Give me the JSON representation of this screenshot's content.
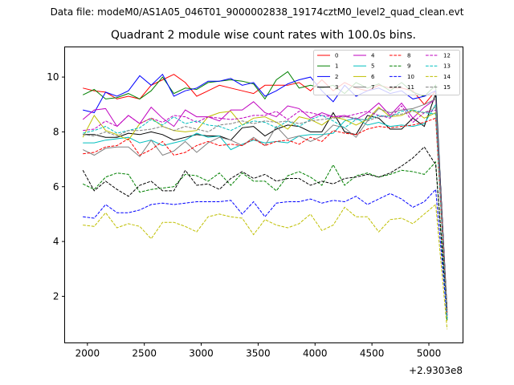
{
  "figure": {
    "suptitle": "Data file: modeM0/AS1A05_046T01_9000002838_19174cztM0_level2_quad_clean.evt"
  },
  "chart_data": {
    "type": "line",
    "title": "Quadrant 2 module wise count rates with 100.0s bins.",
    "xlabel": "",
    "ylabel": "",
    "x_offset_label": "+2.9303e8",
    "xlim": [
      1800,
      5300
    ],
    "ylim": [
      0.3,
      11.1
    ],
    "xticks": [
      2000,
      2500,
      3000,
      3500,
      4000,
      4500,
      5000
    ],
    "yticks": [
      2,
      4,
      6,
      8,
      10
    ],
    "grid": false,
    "legend": {
      "placement": "top-right",
      "columns": 4
    },
    "x": [
      1960,
      2060,
      2160,
      2260,
      2360,
      2460,
      2560,
      2660,
      2760,
      2860,
      2960,
      3060,
      3160,
      3260,
      3360,
      3460,
      3560,
      3660,
      3760,
      3860,
      3960,
      4060,
      4160,
      4260,
      4360,
      4460,
      4560,
      4660,
      4760,
      4860,
      4960,
      5060,
      5160
    ],
    "series": [
      {
        "name": "0",
        "color": "#ff0000",
        "dash": "solid",
        "values": [
          9.6,
          9.5,
          9.45,
          9.2,
          9.3,
          9.2,
          9.7,
          9.9,
          10.1,
          9.8,
          9.3,
          9.5,
          9.7,
          9.6,
          9.5,
          9.4,
          9.7,
          9.7,
          9.7,
          9.8,
          9.5,
          9.9,
          9.5,
          9.8,
          9.6,
          9.5,
          9.7,
          9.6,
          9.6,
          9.5,
          9.0,
          9.5,
          1.3
        ]
      },
      {
        "name": "1",
        "color": "#008000",
        "dash": "solid",
        "values": [
          9.35,
          9.55,
          9.2,
          9.25,
          9.4,
          9.2,
          9.5,
          10.0,
          9.4,
          9.6,
          9.55,
          9.8,
          9.85,
          9.9,
          9.85,
          9.75,
          9.2,
          9.9,
          10.2,
          9.6,
          9.7,
          9.6,
          9.7,
          9.4,
          9.8,
          9.6,
          9.75,
          9.5,
          9.8,
          9.45,
          9.3,
          9.7,
          1.2
        ]
      },
      {
        "name": "2",
        "color": "#0000ff",
        "dash": "solid",
        "values": [
          8.8,
          8.7,
          9.45,
          9.3,
          9.5,
          10.05,
          9.7,
          10.1,
          9.3,
          9.5,
          9.6,
          9.85,
          9.85,
          9.95,
          9.7,
          9.8,
          9.3,
          9.5,
          9.75,
          9.9,
          10.0,
          9.5,
          9.1,
          9.7,
          9.3,
          9.5,
          9.6,
          9.4,
          9.5,
          9.2,
          9.3,
          9.5,
          1.4
        ]
      },
      {
        "name": "3",
        "color": "#000000",
        "dash": "solid",
        "values": [
          7.9,
          7.9,
          7.8,
          7.8,
          7.95,
          7.9,
          8.0,
          7.9,
          7.7,
          7.8,
          7.9,
          7.85,
          7.85,
          7.7,
          8.15,
          8.2,
          7.85,
          8.1,
          8.25,
          8.2,
          8.0,
          8.0,
          8.7,
          8.0,
          7.9,
          8.6,
          8.5,
          8.1,
          8.1,
          8.5,
          8.2,
          9.4,
          1.5
        ]
      },
      {
        "name": "4",
        "color": "#bf00bf",
        "dash": "solid",
        "values": [
          8.45,
          8.8,
          8.85,
          8.2,
          8.6,
          8.3,
          8.9,
          8.5,
          8.2,
          8.8,
          8.55,
          8.55,
          8.4,
          8.8,
          8.8,
          9.1,
          8.7,
          8.55,
          8.95,
          8.85,
          8.5,
          8.7,
          8.55,
          8.6,
          8.45,
          8.7,
          9.05,
          8.6,
          9.05,
          8.5,
          8.9,
          9.2,
          1.3
        ]
      },
      {
        "name": "5",
        "color": "#00bfbf",
        "dash": "solid",
        "values": [
          7.6,
          7.6,
          7.7,
          7.75,
          7.8,
          7.6,
          7.7,
          7.5,
          7.6,
          7.7,
          7.95,
          7.8,
          7.85,
          7.35,
          7.55,
          7.7,
          7.6,
          7.65,
          7.6,
          7.85,
          7.9,
          7.9,
          7.95,
          8.4,
          8.5,
          8.25,
          8.35,
          8.2,
          8.25,
          8.2,
          8.3,
          9.0,
          1.2
        ]
      },
      {
        "name": "6",
        "color": "#bfbf00",
        "dash": "solid",
        "values": [
          7.8,
          8.6,
          8.05,
          7.9,
          7.7,
          8.3,
          8.5,
          8.2,
          8.05,
          8.0,
          8.05,
          8.55,
          8.7,
          8.75,
          8.25,
          8.5,
          8.55,
          8.35,
          8.1,
          8.55,
          8.45,
          8.25,
          8.55,
          8.45,
          8.25,
          8.45,
          8.9,
          8.55,
          8.6,
          8.8,
          8.5,
          8.7,
          1.1
        ]
      },
      {
        "name": "7",
        "color": "#808080",
        "dash": "solid",
        "values": [
          7.35,
          7.15,
          7.4,
          7.45,
          7.45,
          7.1,
          7.7,
          7.15,
          7.3,
          7.65,
          7.25,
          7.6,
          7.8,
          7.7,
          7.5,
          7.8,
          7.5,
          8.2,
          7.75,
          7.85,
          7.65,
          7.85,
          8.25,
          8.15,
          7.8,
          8.4,
          8.85,
          8.7,
          8.8,
          8.85,
          9.0,
          9.2,
          1.4
        ]
      },
      {
        "name": "8",
        "color": "#ff0000",
        "dash": "dashed",
        "values": [
          7.2,
          7.25,
          7.45,
          7.5,
          7.75,
          7.15,
          7.35,
          7.65,
          7.15,
          7.25,
          7.5,
          7.65,
          7.5,
          7.55,
          7.5,
          7.75,
          7.5,
          7.65,
          7.7,
          7.55,
          7.8,
          7.65,
          8.05,
          7.95,
          7.9,
          8.1,
          8.2,
          8.15,
          8.2,
          8.25,
          8.35,
          8.5,
          1.3
        ]
      },
      {
        "name": "9",
        "color": "#008000",
        "dash": "dashed",
        "values": [
          6.1,
          5.9,
          6.35,
          6.5,
          6.45,
          5.8,
          5.9,
          5.95,
          6.0,
          6.45,
          6.4,
          6.2,
          6.5,
          6.05,
          6.5,
          6.2,
          6.2,
          5.85,
          6.4,
          6.55,
          6.35,
          6.05,
          6.8,
          6.05,
          6.4,
          6.5,
          6.35,
          6.45,
          6.6,
          6.55,
          6.45,
          6.9,
          1.1
        ]
      },
      {
        "name": "10",
        "color": "#0000ff",
        "dash": "dashed",
        "values": [
          4.9,
          4.85,
          5.35,
          5.05,
          5.05,
          5.15,
          5.35,
          5.4,
          5.35,
          5.4,
          5.45,
          5.45,
          5.45,
          5.5,
          5.0,
          5.45,
          4.9,
          5.4,
          5.45,
          5.45,
          5.55,
          5.4,
          5.5,
          5.45,
          5.65,
          5.35,
          5.55,
          5.75,
          5.55,
          5.25,
          5.45,
          5.9,
          1.2
        ]
      },
      {
        "name": "11",
        "color": "#000000",
        "dash": "dashed",
        "values": [
          6.6,
          5.85,
          6.2,
          5.9,
          5.65,
          6.05,
          6.2,
          5.85,
          5.85,
          6.6,
          6.05,
          6.1,
          5.9,
          6.3,
          6.55,
          6.3,
          6.45,
          6.2,
          6.3,
          6.3,
          6.05,
          6.2,
          6.1,
          6.3,
          6.35,
          6.45,
          6.35,
          6.5,
          6.75,
          7.05,
          7.45,
          6.8,
          1.5
        ]
      },
      {
        "name": "12",
        "color": "#bf00bf",
        "dash": "dashed",
        "values": [
          8.05,
          8.1,
          8.4,
          8.2,
          8.6,
          8.3,
          8.5,
          8.35,
          8.6,
          8.55,
          8.35,
          8.55,
          8.5,
          8.45,
          8.5,
          8.6,
          8.6,
          8.75,
          8.45,
          8.75,
          8.7,
          8.6,
          8.55,
          8.55,
          8.65,
          8.75,
          8.6,
          8.5,
          8.95,
          8.35,
          8.7,
          8.8,
          1.3
        ]
      },
      {
        "name": "13",
        "color": "#00bfbf",
        "dash": "dashed",
        "values": [
          7.95,
          8.05,
          8.2,
          7.95,
          8.05,
          8.15,
          8.45,
          8.25,
          8.55,
          8.3,
          8.4,
          8.25,
          8.2,
          8.05,
          8.25,
          8.4,
          8.35,
          8.15,
          8.4,
          8.2,
          8.45,
          8.6,
          8.4,
          8.15,
          8.45,
          8.45,
          8.6,
          8.55,
          8.75,
          8.8,
          8.7,
          8.65,
          1.2
        ]
      },
      {
        "name": "14",
        "color": "#bfbf00",
        "dash": "dashed",
        "values": [
          4.6,
          4.55,
          5.05,
          4.5,
          4.65,
          4.55,
          4.1,
          4.7,
          4.7,
          4.55,
          4.35,
          4.9,
          5.0,
          4.9,
          4.85,
          4.25,
          4.8,
          4.6,
          4.5,
          4.65,
          5.0,
          4.4,
          4.6,
          5.25,
          4.9,
          4.9,
          4.35,
          4.8,
          4.85,
          4.65,
          5.0,
          5.35,
          0.8
        ]
      },
      {
        "name": "15",
        "color": "#808080",
        "dash": "dashed",
        "values": [
          7.9,
          7.85,
          8.0,
          7.85,
          8.05,
          8.05,
          8.1,
          8.2,
          8.05,
          8.2,
          8.1,
          8.0,
          8.25,
          8.3,
          8.4,
          8.3,
          8.4,
          8.35,
          8.4,
          8.3,
          8.4,
          8.45,
          8.5,
          8.55,
          8.5,
          8.4,
          8.55,
          8.6,
          8.65,
          8.75,
          8.7,
          8.9,
          1.4
        ]
      }
    ]
  }
}
